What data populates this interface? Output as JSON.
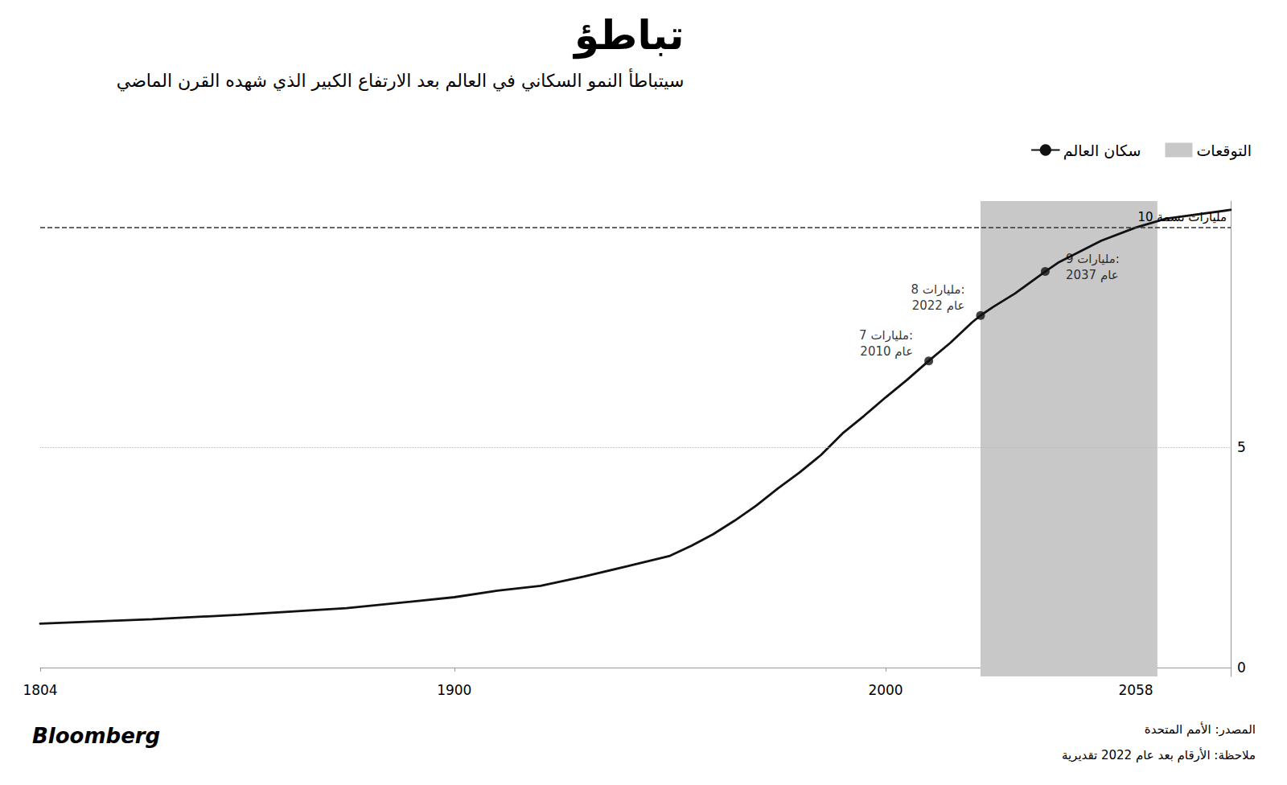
{
  "chart_data": {
    "type": "line",
    "title": "تباطؤ",
    "subtitle": "سيتباطأ النمو السكاني في العالم بعد الارتفاع الكبير الذي شهده القرن الماضي",
    "x": [
      1804,
      1830,
      1850,
      1875,
      1900,
      1910,
      1920,
      1930,
      1940,
      1950,
      1955,
      1960,
      1965,
      1970,
      1975,
      1980,
      1985,
      1990,
      1995,
      2000,
      2005,
      2010,
      2015,
      2020,
      2022,
      2025,
      2030,
      2037,
      2040,
      2050,
      2058,
      2065,
      2080
    ],
    "series": [
      {
        "name": "سكان العالم",
        "color": "#111111",
        "values": [
          1.0,
          1.1,
          1.2,
          1.35,
          1.6,
          1.75,
          1.86,
          2.07,
          2.3,
          2.54,
          2.77,
          3.03,
          3.34,
          3.68,
          4.07,
          4.43,
          4.83,
          5.32,
          5.72,
          6.14,
          6.54,
          6.97,
          7.38,
          7.84,
          8.0,
          8.2,
          8.5,
          9.0,
          9.2,
          9.7,
          10.0,
          10.2,
          10.4
        ]
      }
    ],
    "xlim": [
      1804,
      2080
    ],
    "xticks": [
      1804,
      1900,
      2000,
      2058
    ],
    "ylim": [
      -0.2,
      10.6
    ],
    "yticks": [
      0,
      5
    ],
    "grid": false,
    "legend": "top right",
    "background": "#ffffff",
    "shaded_regions": [
      {
        "name": "التوقعات",
        "from": 2022,
        "to": 2063,
        "color": "#c8c8c8"
      }
    ],
    "reference_lines": [
      {
        "y": 10.0,
        "label": "10 مليارات نسمة",
        "line_style": "dashed",
        "color": "#333333"
      },
      {
        "y": 5,
        "line_style": "dotted",
        "color": "#bbbbbb"
      }
    ],
    "highlighted_points": [
      {
        "x": 2010,
        "y": 6.97,
        "annotation": [
          "7 مليارات:",
          "عام 2010"
        ],
        "side": "left"
      },
      {
        "x": 2022,
        "y": 8.0,
        "annotation": [
          "8 مليارات:",
          "عام 2022"
        ],
        "side": "left"
      },
      {
        "x": 2037,
        "y": 9.0,
        "annotation": [
          "9 مليارات:",
          "عام 2037"
        ],
        "side": "right"
      }
    ],
    "sources": [
      "المصدر: الأمم المتحدة",
      "ملاحظة: الأرقام بعد عام 2022 تقديرية"
    ],
    "branding": "Bloomberg"
  }
}
